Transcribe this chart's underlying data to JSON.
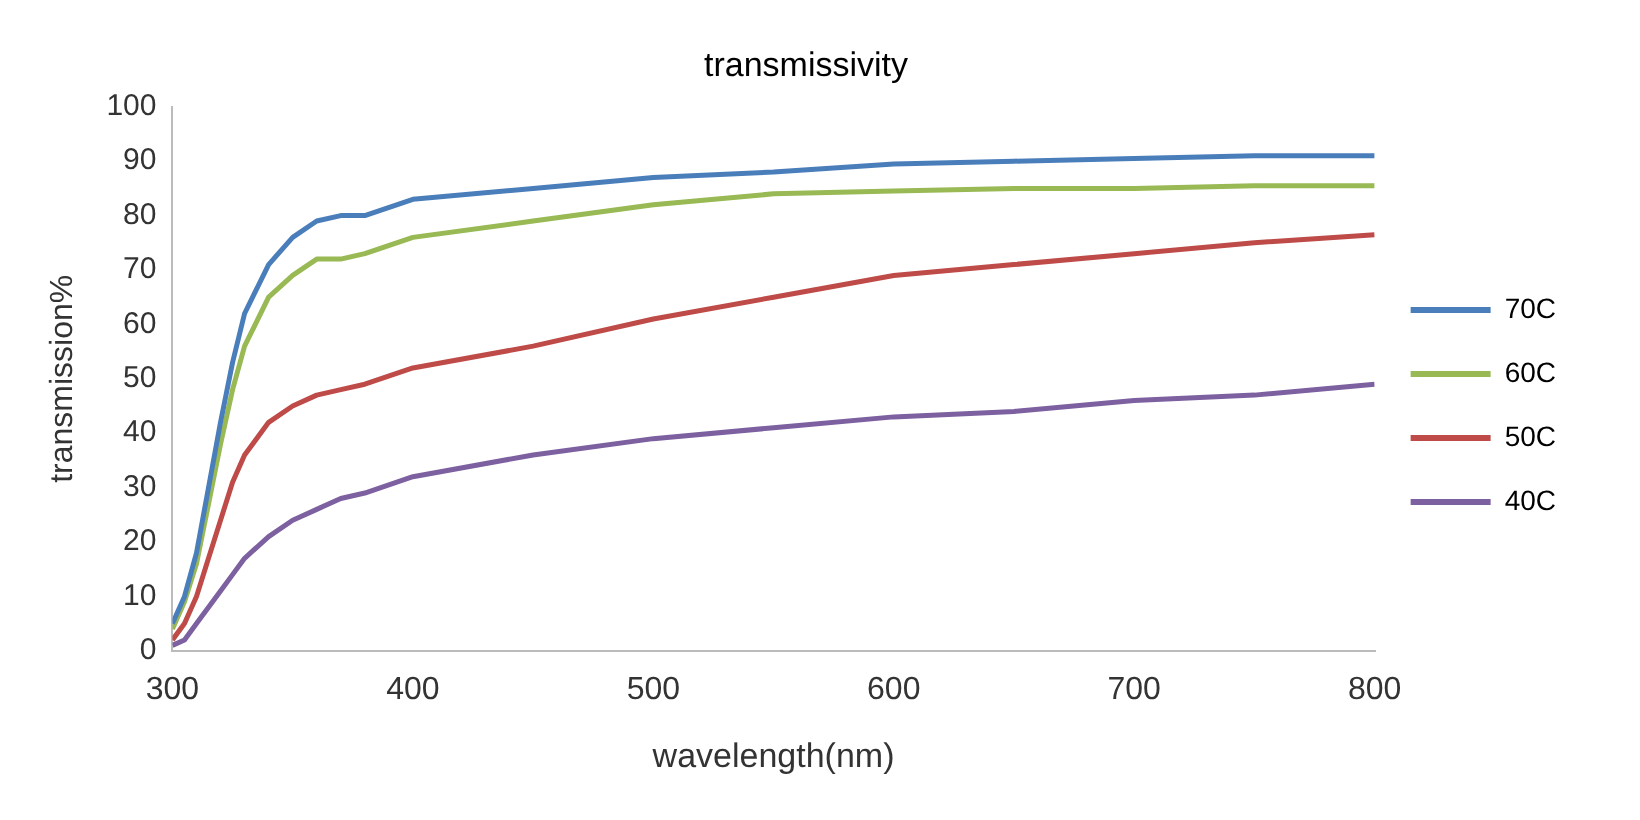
{
  "chart_data": {
    "type": "line",
    "title": "transmissivity",
    "xlabel": "wavelength(nm)",
    "ylabel": "transmission%",
    "x": [
      300,
      305,
      310,
      315,
      320,
      325,
      330,
      340,
      350,
      360,
      370,
      380,
      400,
      450,
      500,
      550,
      600,
      650,
      700,
      750,
      800
    ],
    "series": [
      {
        "name": "70C",
        "color": "#4a7ebb",
        "values": [
          5,
          10,
          18,
          30,
          42,
          53,
          62,
          71,
          76,
          79,
          80,
          80,
          83,
          85,
          87,
          88,
          89.5,
          90,
          90.5,
          91,
          91
        ]
      },
      {
        "name": "60C",
        "color": "#98b954",
        "values": [
          4,
          9,
          16,
          27,
          38,
          48,
          56,
          65,
          69,
          72,
          72,
          73,
          76,
          79,
          82,
          84,
          84.5,
          85,
          85,
          85.5,
          85.5
        ]
      },
      {
        "name": "50C",
        "color": "#be4b48",
        "values": [
          2,
          5,
          10,
          17,
          24,
          31,
          36,
          42,
          45,
          47,
          48,
          49,
          52,
          56,
          61,
          65,
          69,
          71,
          73,
          75,
          76.5
        ]
      },
      {
        "name": "40C",
        "color": "#7d60a0",
        "values": [
          1,
          2,
          5,
          8,
          11,
          14,
          17,
          21,
          24,
          26,
          28,
          29,
          32,
          36,
          39,
          41,
          43,
          44,
          46,
          47,
          49
        ]
      }
    ],
    "xlim": [
      300,
      800
    ],
    "xticks": [
      300,
      400,
      500,
      600,
      700,
      800
    ],
    "ylim": [
      0,
      100
    ],
    "yticks": [
      0,
      10,
      20,
      30,
      40,
      50,
      60,
      70,
      80,
      90,
      100
    ],
    "grid": false,
    "legend": "right",
    "marker": "none",
    "line_style": "solid"
  }
}
